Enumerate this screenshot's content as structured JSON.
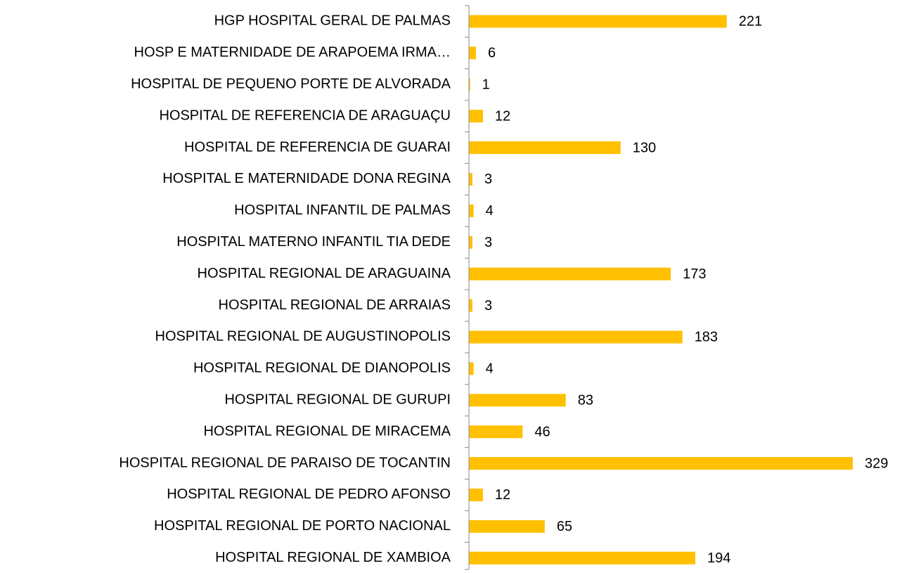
{
  "chart_data": {
    "type": "bar",
    "orientation": "horizontal",
    "color": "#ffc000",
    "categories": [
      "HGP HOSPITAL GERAL DE PALMAS",
      "HOSP E MATERNIDADE DE ARAPOEMA IRMA…",
      "HOSPITAL DE PEQUENO PORTE DE ALVORADA",
      "HOSPITAL DE REFERENCIA DE ARAGUAÇU",
      "HOSPITAL DE REFERENCIA DE GUARAI",
      "HOSPITAL E MATERNIDADE DONA REGINA",
      "HOSPITAL INFANTIL DE PALMAS",
      "HOSPITAL MATERNO INFANTIL TIA DEDE",
      "HOSPITAL REGIONAL DE ARAGUAINA",
      "HOSPITAL REGIONAL DE ARRAIAS",
      "HOSPITAL REGIONAL DE AUGUSTINOPOLIS",
      "HOSPITAL REGIONAL DE DIANOPOLIS",
      "HOSPITAL REGIONAL DE GURUPI",
      "HOSPITAL REGIONAL DE MIRACEMA",
      "HOSPITAL REGIONAL DE PARAISO DE TOCANTIN",
      "HOSPITAL REGIONAL DE PEDRO AFONSO",
      "HOSPITAL REGIONAL DE PORTO NACIONAL",
      "HOSPITAL REGIONAL DE XAMBIOA"
    ],
    "values": [
      221,
      6,
      1,
      12,
      130,
      3,
      4,
      3,
      173,
      3,
      183,
      4,
      83,
      46,
      329,
      12,
      65,
      194
    ]
  }
}
